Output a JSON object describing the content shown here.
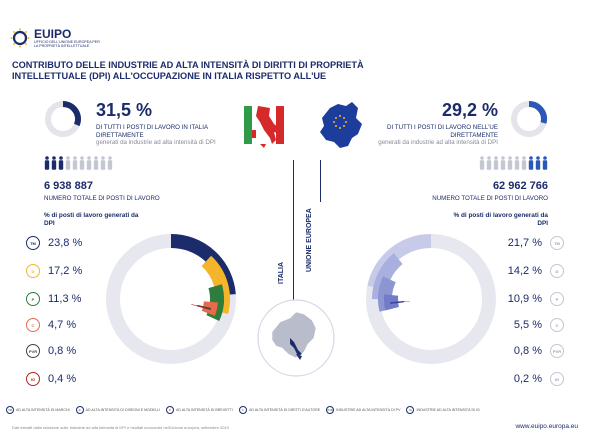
{
  "logo": {
    "name": "EUIPO",
    "subtitle": "UFFICIO DELL'UNIONE EUROPEA PER LA PROPRIETÀ INTELLETTUALE"
  },
  "title": "CONTRIBUTO DELLE INDUSTRIE AD ALTA INTENSITÀ DI DIRITTI DI PROPRIETÀ INTELLETTUALE (DPI) ALL'OCCUPAZIONE IN ITALIA RISPETTO ALL'UE",
  "italy": {
    "label": "ITALIA",
    "share": "31,5 %",
    "share_value": 31.5,
    "desc": "DI TUTTI I POSTI DI LAVORO IN ITALIA DIRETTAMENTE",
    "desc_sub": "generati da industrie ad alta intensità di DPI",
    "total": "6 938 887",
    "total_label": "NUMERO TOTALE DI POSTI DI LAVORO",
    "share_label": "% di posti di lavoro generati da DPI",
    "people_filled": 3
  },
  "eu": {
    "label": "UNIONE EUROPEA",
    "share": "29,2 %",
    "share_value": 29.2,
    "desc": "DI TUTTI I POSTI DI LAVORO NELL'UE DIRETTAMENTE",
    "desc_sub": "generati da industrie ad alta intensità di DPI",
    "total": "62 962 766",
    "total_label": "NUMERO TOTALE DI POSTI DI LAVORO",
    "share_label": "% di posti di lavoro generati da DPI",
    "people_filled": 3
  },
  "chart_data": [
    {
      "type": "pie",
      "title": "",
      "categories": [
        "TM",
        "D",
        "P",
        "C",
        "PVR",
        "IG"
      ],
      "values": [
        23.8,
        17.2,
        11.3,
        4.7,
        0.8,
        0.4
      ],
      "labels": [
        "23,8 %",
        "17,2 %",
        "11,3 %",
        "4,7 %",
        "0,8 %",
        "0,4 %"
      ],
      "colors": [
        "#1c2c6b",
        "#f5b52a",
        "#2f7d3c",
        "#e86a4a",
        "#444444",
        "#b3261e"
      ]
    },
    {
      "type": "pie",
      "title": "",
      "categories": [
        "TM",
        "D",
        "P",
        "C",
        "PVR",
        "IG"
      ],
      "values": [
        21.7,
        14.2,
        10.9,
        5.5,
        0.8,
        0.2
      ],
      "labels": [
        "21,7 %",
        "14,2 %",
        "10,9 %",
        "5,5 %",
        "0,8 %",
        "0,2 %"
      ],
      "colors": [
        "#c7cbe9",
        "#a9b0df",
        "#8d95d3",
        "#727bc7",
        "#3f4aa8",
        "#1c2c6b"
      ]
    }
  ],
  "badges": [
    "TM",
    "D",
    "P",
    "C",
    "PVR",
    "IG"
  ],
  "legend": [
    {
      "badge": "TM",
      "text": "AD ALTA INTENSITÀ DI MARCHI"
    },
    {
      "badge": "D",
      "text": "AD ALTA INTENSITÀ DI DISEGNI E MODELLI"
    },
    {
      "badge": "P",
      "text": "AD ALTA INTENSITÀ DI BREVETTI"
    },
    {
      "badge": "C",
      "text": "AD ALTA INTENSITÀ DI DIRITTI D'AUTORE"
    },
    {
      "badge": "PVR",
      "text": "INDUSTRIE AD ALTA INTENSITÀ DI PV"
    },
    {
      "badge": "IG",
      "text": "INDUSTRIE AD ALTA INTENSITÀ DI IG"
    }
  ],
  "source": "Dati estratti dalla relazione sulle Industrie ad alta intensità di DPI e risultati economici nell'Unione europea, settembre 2019",
  "site": "www.euipo.europa.eu"
}
